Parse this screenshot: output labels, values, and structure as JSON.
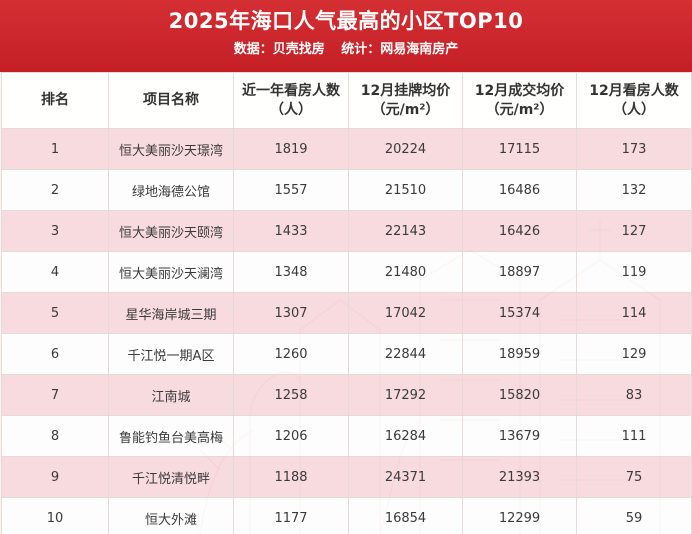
{
  "header": {
    "title": "2025年海口人气最高的小区TOP10",
    "source": "数据：贝壳找房",
    "stats_by": "统计：网易海南房产"
  },
  "table": {
    "columns": [
      {
        "line1": "排名",
        "line2": ""
      },
      {
        "line1": "项目名称",
        "line2": ""
      },
      {
        "line1": "近一年看房人数",
        "line2": "（人）"
      },
      {
        "line1": "12月挂牌均价",
        "line2": "（元/m²）"
      },
      {
        "line1": "12月成交均价",
        "line2": "（元/m²）"
      },
      {
        "line1": "12月看房人数",
        "line2": "（人）"
      }
    ],
    "rows": [
      {
        "rank": "1",
        "name": "恒大美丽沙天璟湾",
        "visitors_year": "1819",
        "list_price": "20224",
        "deal_price": "17115",
        "visitors_dec": "173"
      },
      {
        "rank": "2",
        "name": "绿地海德公馆",
        "visitors_year": "1557",
        "list_price": "21510",
        "deal_price": "16486",
        "visitors_dec": "132"
      },
      {
        "rank": "3",
        "name": "恒大美丽沙天颐湾",
        "visitors_year": "1433",
        "list_price": "22143",
        "deal_price": "16426",
        "visitors_dec": "127"
      },
      {
        "rank": "4",
        "name": "恒大美丽沙天澜湾",
        "visitors_year": "1348",
        "list_price": "21480",
        "deal_price": "18897",
        "visitors_dec": "119"
      },
      {
        "rank": "5",
        "name": "星华海岸城三期",
        "visitors_year": "1307",
        "list_price": "17042",
        "deal_price": "15374",
        "visitors_dec": "114"
      },
      {
        "rank": "6",
        "name": "千江悦一期A区",
        "visitors_year": "1260",
        "list_price": "22844",
        "deal_price": "18959",
        "visitors_dec": "129"
      },
      {
        "rank": "7",
        "name": "江南城",
        "visitors_year": "1258",
        "list_price": "17292",
        "deal_price": "15820",
        "visitors_dec": "83"
      },
      {
        "rank": "8",
        "name": "鲁能钓鱼台美高梅",
        "visitors_year": "1206",
        "list_price": "16284",
        "deal_price": "13679",
        "visitors_dec": "111"
      },
      {
        "rank": "9",
        "name": "千江悦清悦畔",
        "visitors_year": "1188",
        "list_price": "24371",
        "deal_price": "21393",
        "visitors_dec": "75"
      },
      {
        "rank": "10",
        "name": "恒大外滩",
        "visitors_year": "1177",
        "list_price": "16854",
        "deal_price": "12299",
        "visitors_dec": "59"
      }
    ]
  }
}
